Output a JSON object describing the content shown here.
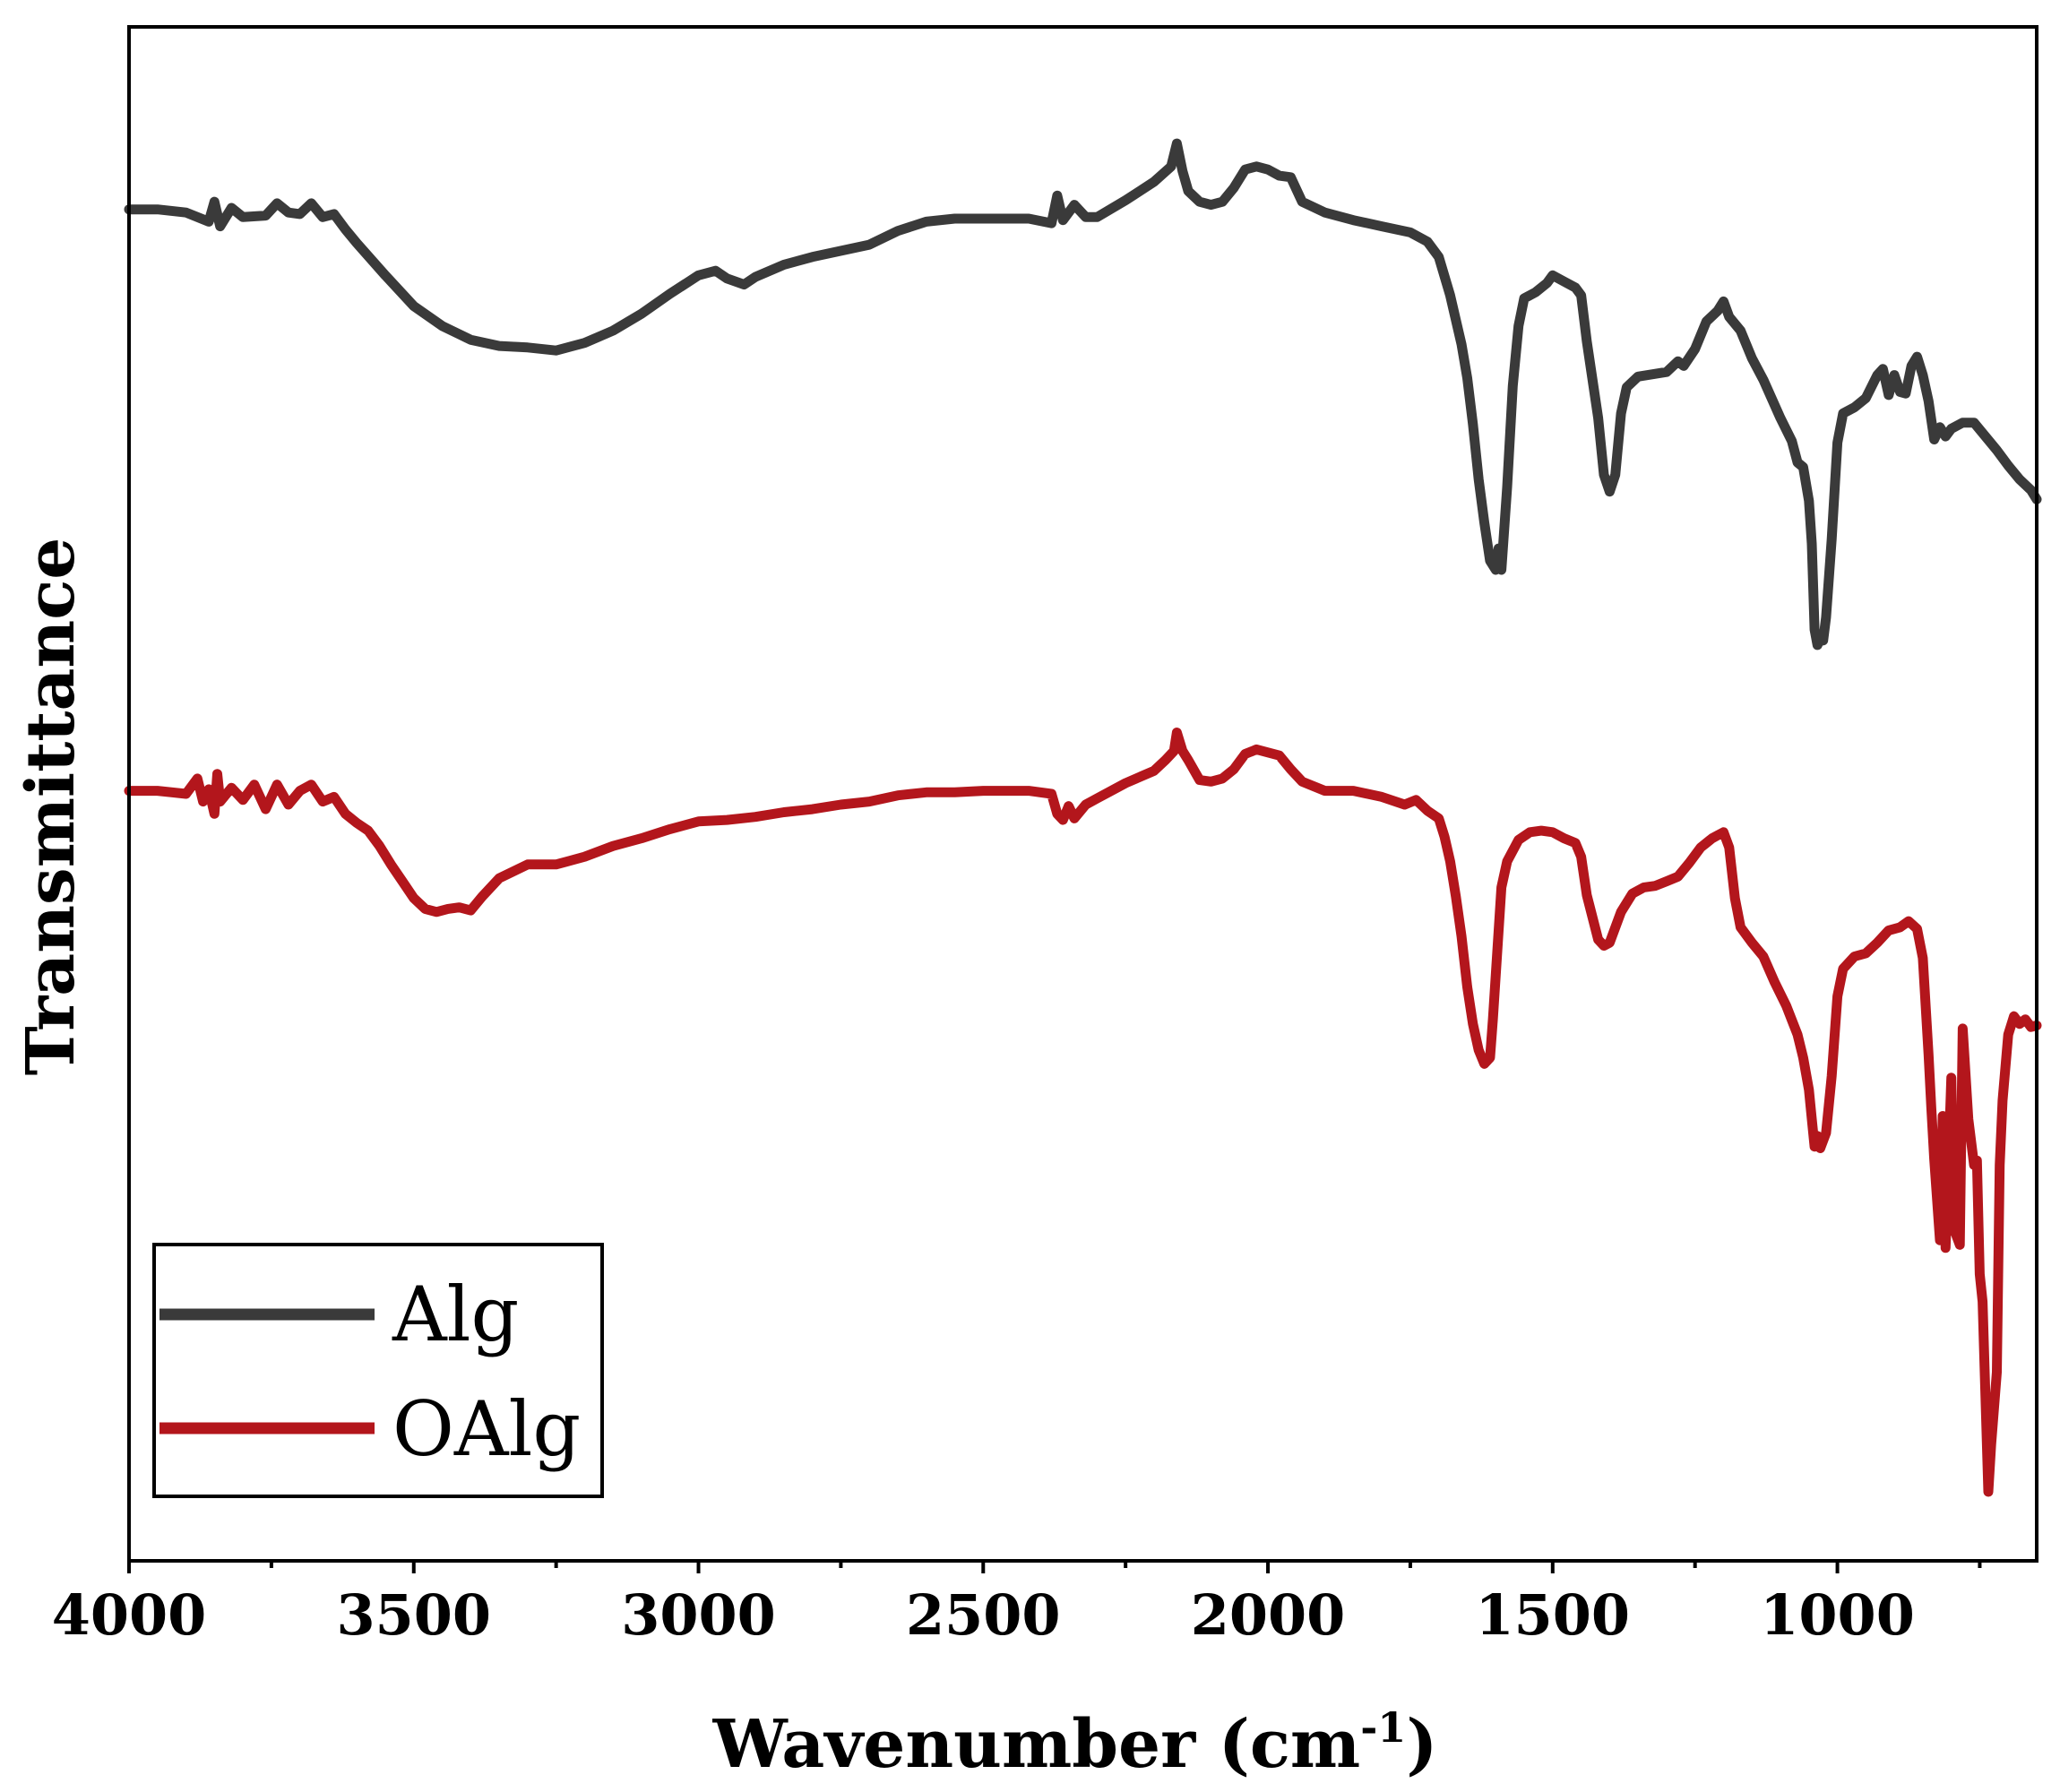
{
  "chart_data": {
    "type": "line",
    "xlabel": "Wavenumber (cm",
    "xlabel_sup": "-1",
    "xlabel_close": ")",
    "ylabel": "Transmittance",
    "xlim": [
      4000,
      650
    ],
    "ylim": [
      0,
      100
    ],
    "x_reversed": true,
    "grid": false,
    "x_ticks": [
      4000,
      3500,
      3000,
      2500,
      2000,
      1500,
      1000
    ],
    "x_tick_labels": [
      "4000",
      "3500",
      "3000",
      "2500",
      "2000",
      "1500",
      "1000"
    ],
    "x_minor_ticks": [
      3750,
      3250,
      2750,
      2250,
      1750,
      1250,
      750
    ],
    "y_ticks_visible": false,
    "legend": {
      "position": "bottom-left",
      "entries": [
        "Alg",
        "OAlg"
      ]
    },
    "series": [
      {
        "name": "Alg",
        "color": "#3a3a3a",
        "points": [
          [
            4000,
            88.1
          ],
          [
            3950,
            88.1
          ],
          [
            3900,
            87.9
          ],
          [
            3860,
            87.3
          ],
          [
            3850,
            88.6
          ],
          [
            3840,
            87.0
          ],
          [
            3820,
            88.2
          ],
          [
            3800,
            87.6
          ],
          [
            3760,
            87.7
          ],
          [
            3740,
            88.5
          ],
          [
            3720,
            87.9
          ],
          [
            3700,
            87.8
          ],
          [
            3680,
            88.5
          ],
          [
            3660,
            87.6
          ],
          [
            3640,
            87.8
          ],
          [
            3620,
            86.8
          ],
          [
            3600,
            85.9
          ],
          [
            3550,
            83.8
          ],
          [
            3500,
            81.8
          ],
          [
            3450,
            80.5
          ],
          [
            3400,
            79.6
          ],
          [
            3350,
            79.2
          ],
          [
            3300,
            79.1
          ],
          [
            3250,
            78.9
          ],
          [
            3200,
            79.4
          ],
          [
            3150,
            80.2
          ],
          [
            3100,
            81.3
          ],
          [
            3050,
            82.6
          ],
          [
            3000,
            83.8
          ],
          [
            2970,
            84.1
          ],
          [
            2950,
            83.6
          ],
          [
            2920,
            83.2
          ],
          [
            2900,
            83.7
          ],
          [
            2850,
            84.5
          ],
          [
            2800,
            85.0
          ],
          [
            2700,
            85.8
          ],
          [
            2650,
            86.7
          ],
          [
            2600,
            87.3
          ],
          [
            2550,
            87.5
          ],
          [
            2500,
            87.5
          ],
          [
            2420,
            87.5
          ],
          [
            2380,
            87.2
          ],
          [
            2370,
            89.0
          ],
          [
            2360,
            87.4
          ],
          [
            2340,
            88.4
          ],
          [
            2320,
            87.6
          ],
          [
            2300,
            87.6
          ],
          [
            2250,
            88.7
          ],
          [
            2200,
            89.9
          ],
          [
            2170,
            90.9
          ],
          [
            2160,
            92.4
          ],
          [
            2150,
            90.6
          ],
          [
            2140,
            89.3
          ],
          [
            2120,
            88.6
          ],
          [
            2100,
            88.4
          ],
          [
            2080,
            88.6
          ],
          [
            2060,
            89.5
          ],
          [
            2040,
            90.7
          ],
          [
            2020,
            90.9
          ],
          [
            2000,
            90.7
          ],
          [
            1980,
            90.3
          ],
          [
            1960,
            90.2
          ],
          [
            1940,
            88.6
          ],
          [
            1900,
            87.9
          ],
          [
            1850,
            87.4
          ],
          [
            1800,
            87.0
          ],
          [
            1750,
            86.6
          ],
          [
            1720,
            86.0
          ],
          [
            1700,
            85.0
          ],
          [
            1680,
            82.5
          ],
          [
            1660,
            79.3
          ],
          [
            1650,
            77.1
          ],
          [
            1640,
            74.1
          ],
          [
            1630,
            70.5
          ],
          [
            1620,
            67.7
          ],
          [
            1610,
            65.2
          ],
          [
            1600,
            64.6
          ],
          [
            1595,
            66.0
          ],
          [
            1590,
            64.6
          ],
          [
            1580,
            70.0
          ],
          [
            1570,
            76.6
          ],
          [
            1560,
            80.5
          ],
          [
            1550,
            82.3
          ],
          [
            1530,
            82.7
          ],
          [
            1510,
            83.3
          ],
          [
            1500,
            83.8
          ],
          [
            1480,
            83.4
          ],
          [
            1460,
            83.0
          ],
          [
            1450,
            82.5
          ],
          [
            1440,
            79.5
          ],
          [
            1420,
            74.5
          ],
          [
            1410,
            70.8
          ],
          [
            1400,
            69.7
          ],
          [
            1390,
            70.8
          ],
          [
            1380,
            74.8
          ],
          [
            1370,
            76.5
          ],
          [
            1350,
            77.2
          ],
          [
            1300,
            77.5
          ],
          [
            1280,
            78.2
          ],
          [
            1270,
            77.9
          ],
          [
            1250,
            79.0
          ],
          [
            1230,
            80.8
          ],
          [
            1210,
            81.5
          ],
          [
            1200,
            82.1
          ],
          [
            1190,
            81.1
          ],
          [
            1170,
            80.2
          ],
          [
            1150,
            78.4
          ],
          [
            1130,
            77.0
          ],
          [
            1100,
            74.5
          ],
          [
            1080,
            73.0
          ],
          [
            1070,
            71.6
          ],
          [
            1060,
            71.3
          ],
          [
            1050,
            69.1
          ],
          [
            1045,
            66.3
          ],
          [
            1040,
            60.7
          ],
          [
            1035,
            59.7
          ],
          [
            1030,
            60.1
          ],
          [
            1025,
            60.0
          ],
          [
            1020,
            61.5
          ],
          [
            1010,
            66.6
          ],
          [
            1000,
            72.9
          ],
          [
            990,
            74.8
          ],
          [
            970,
            75.2
          ],
          [
            950,
            75.8
          ],
          [
            930,
            77.3
          ],
          [
            920,
            77.7
          ],
          [
            910,
            76.0
          ],
          [
            900,
            77.3
          ],
          [
            890,
            76.2
          ],
          [
            880,
            76.1
          ],
          [
            870,
            77.9
          ],
          [
            860,
            78.5
          ],
          [
            850,
            77.3
          ],
          [
            840,
            75.6
          ],
          [
            830,
            73.1
          ],
          [
            820,
            73.9
          ],
          [
            810,
            73.3
          ],
          [
            800,
            73.8
          ],
          [
            780,
            74.2
          ],
          [
            760,
            74.2
          ],
          [
            740,
            73.3
          ],
          [
            720,
            72.4
          ],
          [
            700,
            71.4
          ],
          [
            680,
            70.5
          ],
          [
            660,
            69.8
          ],
          [
            650,
            69.2
          ]
        ]
      },
      {
        "name": "OAlg",
        "color": "#b3161c",
        "points": [
          [
            4000,
            50.2
          ],
          [
            3950,
            50.2
          ],
          [
            3900,
            50.0
          ],
          [
            3880,
            51.0
          ],
          [
            3870,
            49.5
          ],
          [
            3860,
            50.3
          ],
          [
            3850,
            48.7
          ],
          [
            3845,
            51.3
          ],
          [
            3840,
            49.5
          ],
          [
            3820,
            50.4
          ],
          [
            3800,
            49.6
          ],
          [
            3780,
            50.6
          ],
          [
            3760,
            49.0
          ],
          [
            3740,
            50.6
          ],
          [
            3720,
            49.3
          ],
          [
            3700,
            50.2
          ],
          [
            3680,
            50.6
          ],
          [
            3660,
            49.5
          ],
          [
            3640,
            49.8
          ],
          [
            3620,
            48.7
          ],
          [
            3600,
            48.1
          ],
          [
            3580,
            47.6
          ],
          [
            3560,
            46.6
          ],
          [
            3540,
            45.4
          ],
          [
            3520,
            44.3
          ],
          [
            3500,
            43.2
          ],
          [
            3480,
            42.5
          ],
          [
            3460,
            42.3
          ],
          [
            3440,
            42.5
          ],
          [
            3420,
            42.6
          ],
          [
            3400,
            42.4
          ],
          [
            3380,
            43.3
          ],
          [
            3350,
            44.5
          ],
          [
            3300,
            45.4
          ],
          [
            3250,
            45.4
          ],
          [
            3200,
            45.9
          ],
          [
            3150,
            46.6
          ],
          [
            3100,
            47.1
          ],
          [
            3050,
            47.7
          ],
          [
            3000,
            48.2
          ],
          [
            2950,
            48.3
          ],
          [
            2900,
            48.5
          ],
          [
            2850,
            48.8
          ],
          [
            2800,
            49.0
          ],
          [
            2750,
            49.3
          ],
          [
            2700,
            49.5
          ],
          [
            2650,
            49.9
          ],
          [
            2600,
            50.1
          ],
          [
            2550,
            50.1
          ],
          [
            2500,
            50.2
          ],
          [
            2420,
            50.2
          ],
          [
            2380,
            50.0
          ],
          [
            2370,
            48.7
          ],
          [
            2360,
            48.3
          ],
          [
            2350,
            49.2
          ],
          [
            2340,
            48.4
          ],
          [
            2320,
            49.3
          ],
          [
            2300,
            49.7
          ],
          [
            2250,
            50.7
          ],
          [
            2200,
            51.5
          ],
          [
            2180,
            52.2
          ],
          [
            2165,
            52.8
          ],
          [
            2160,
            54.0
          ],
          [
            2150,
            52.8
          ],
          [
            2140,
            52.2
          ],
          [
            2120,
            50.9
          ],
          [
            2100,
            50.8
          ],
          [
            2080,
            51.0
          ],
          [
            2060,
            51.6
          ],
          [
            2040,
            52.6
          ],
          [
            2020,
            52.9
          ],
          [
            2000,
            52.7
          ],
          [
            1980,
            52.5
          ],
          [
            1960,
            51.6
          ],
          [
            1940,
            50.8
          ],
          [
            1900,
            50.2
          ],
          [
            1850,
            50.2
          ],
          [
            1800,
            49.8
          ],
          [
            1760,
            49.3
          ],
          [
            1740,
            49.6
          ],
          [
            1720,
            48.9
          ],
          [
            1700,
            48.4
          ],
          [
            1690,
            47.2
          ],
          [
            1680,
            45.6
          ],
          [
            1670,
            43.3
          ],
          [
            1660,
            40.7
          ],
          [
            1650,
            37.4
          ],
          [
            1640,
            35.0
          ],
          [
            1630,
            33.3
          ],
          [
            1620,
            32.4
          ],
          [
            1610,
            32.8
          ],
          [
            1605,
            35.3
          ],
          [
            1600,
            38.2
          ],
          [
            1590,
            43.9
          ],
          [
            1580,
            45.6
          ],
          [
            1560,
            47.0
          ],
          [
            1540,
            47.5
          ],
          [
            1520,
            47.6
          ],
          [
            1500,
            47.5
          ],
          [
            1480,
            47.1
          ],
          [
            1460,
            46.8
          ],
          [
            1450,
            45.9
          ],
          [
            1440,
            43.4
          ],
          [
            1420,
            40.5
          ],
          [
            1410,
            40.1
          ],
          [
            1400,
            40.3
          ],
          [
            1380,
            42.3
          ],
          [
            1360,
            43.5
          ],
          [
            1340,
            43.9
          ],
          [
            1320,
            44.0
          ],
          [
            1300,
            44.3
          ],
          [
            1280,
            44.6
          ],
          [
            1260,
            45.5
          ],
          [
            1240,
            46.5
          ],
          [
            1220,
            47.1
          ],
          [
            1210,
            47.3
          ],
          [
            1200,
            47.5
          ],
          [
            1190,
            46.5
          ],
          [
            1180,
            43.2
          ],
          [
            1170,
            41.3
          ],
          [
            1150,
            40.3
          ],
          [
            1130,
            39.4
          ],
          [
            1110,
            37.7
          ],
          [
            1090,
            36.2
          ],
          [
            1070,
            34.3
          ],
          [
            1060,
            32.8
          ],
          [
            1050,
            30.7
          ],
          [
            1045,
            28.8
          ],
          [
            1040,
            27.0
          ],
          [
            1035,
            27.7
          ],
          [
            1030,
            26.9
          ],
          [
            1020,
            27.9
          ],
          [
            1010,
            31.6
          ],
          [
            1000,
            36.8
          ],
          [
            990,
            38.6
          ],
          [
            970,
            39.4
          ],
          [
            950,
            39.6
          ],
          [
            930,
            40.3
          ],
          [
            910,
            41.1
          ],
          [
            890,
            41.3
          ],
          [
            875,
            41.7
          ],
          [
            860,
            41.2
          ],
          [
            850,
            39.3
          ],
          [
            840,
            33.0
          ],
          [
            835,
            29.5
          ],
          [
            830,
            26.2
          ],
          [
            820,
            20.9
          ],
          [
            815,
            29.0
          ],
          [
            810,
            20.4
          ],
          [
            800,
            31.5
          ],
          [
            795,
            21.6
          ],
          [
            785,
            20.6
          ],
          [
            780,
            34.7
          ],
          [
            770,
            28.8
          ],
          [
            760,
            25.8
          ],
          [
            755,
            26.1
          ],
          [
            750,
            18.7
          ],
          [
            745,
            16.9
          ],
          [
            735,
            4.5
          ],
          [
            730,
            7.6
          ],
          [
            720,
            12.3
          ],
          [
            715,
            25.8
          ],
          [
            710,
            30.0
          ],
          [
            700,
            34.3
          ],
          [
            690,
            35.5
          ],
          [
            680,
            35.0
          ],
          [
            670,
            35.3
          ],
          [
            660,
            34.8
          ],
          [
            650,
            34.9
          ]
        ]
      }
    ]
  }
}
